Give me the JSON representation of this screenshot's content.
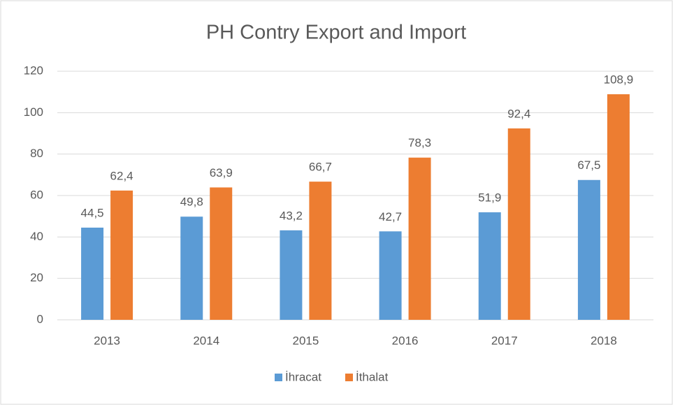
{
  "chart_data": {
    "type": "bar",
    "title": "PH Contry Export and Import",
    "categories": [
      "2013",
      "2014",
      "2015",
      "2016",
      "2017",
      "2018"
    ],
    "series": [
      {
        "name": "İhracat",
        "color": "#5b9bd5",
        "values": [
          44.5,
          49.8,
          43.2,
          42.7,
          51.9,
          67.5
        ],
        "value_labels": [
          "44,5",
          "49,8",
          "43,2",
          "42,7",
          "51,9",
          "67,5"
        ]
      },
      {
        "name": "İthalat",
        "color": "#ed7d31",
        "values": [
          62.4,
          63.9,
          66.7,
          78.3,
          92.4,
          108.9
        ],
        "value_labels": [
          "62,4",
          "63,9",
          "66,7",
          "78,3",
          "92,4",
          "108,9"
        ]
      }
    ],
    "ylim": [
      0,
      120
    ],
    "yticks": [
      0,
      20,
      40,
      60,
      80,
      100,
      120
    ],
    "grid": true,
    "legend": "bottom"
  }
}
